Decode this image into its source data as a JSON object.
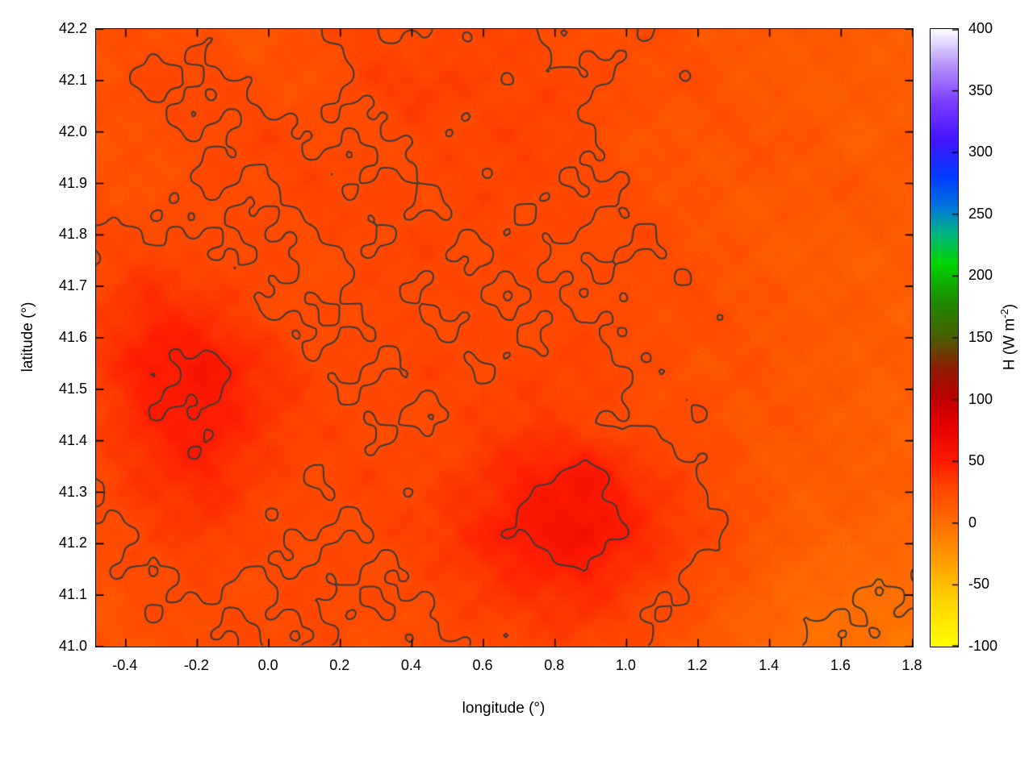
{
  "figure": {
    "xlabel": "longitude (°)",
    "ylabel": "latitude (°)",
    "cblabel_prefix": "H (W m",
    "cblabel_sup": "-2",
    "cblabel_suffix": ")"
  },
  "chart_data": {
    "type": "heatmap",
    "title": "",
    "xlabel": "longitude (°)",
    "ylabel": "latitude (°)",
    "colorbar_label": "H (W m^-2)",
    "x_range": [
      -0.483,
      1.8
    ],
    "y_range": [
      41.0,
      42.2
    ],
    "colorbar_range": [
      -100,
      400
    ],
    "x_tick_values": [
      -0.4,
      -0.2,
      0.0,
      0.2,
      0.4,
      0.6,
      0.8,
      1.0,
      1.2,
      1.4,
      1.6,
      1.8
    ],
    "x_tick_labels": [
      "-0.4",
      "-0.2",
      "0.0",
      "0.2",
      "0.4",
      "0.6",
      "0.8",
      "1.0",
      "1.2",
      "1.4",
      "1.6",
      "1.8"
    ],
    "y_tick_values": [
      41.0,
      41.1,
      41.2,
      41.3,
      41.4,
      41.5,
      41.6,
      41.7,
      41.8,
      41.9,
      42.0,
      42.1,
      42.2
    ],
    "y_tick_labels": [
      "41.0",
      "41.1",
      "41.2",
      "41.3",
      "41.4",
      "41.5",
      "41.6",
      "41.7",
      "41.8",
      "41.9",
      "42.0",
      "42.1",
      "42.2"
    ],
    "cb_tick_values": [
      -100,
      -50,
      0,
      50,
      100,
      150,
      200,
      250,
      300,
      350,
      400
    ],
    "cb_tick_labels": [
      "-100",
      "-50",
      "0",
      "50",
      "100",
      "150",
      "200",
      "250",
      "300",
      "350",
      "400"
    ],
    "grid_on": true,
    "legend": "colorbar-right",
    "contour_levels": [
      0,
      25,
      50
    ],
    "contour_color": "#3b3b3b",
    "palette": [
      {
        "v": -100,
        "c": "#ffff00"
      },
      {
        "v": -60,
        "c": "#ffd000"
      },
      {
        "v": -30,
        "c": "#ff9c00"
      },
      {
        "v": 0,
        "c": "#ff6d00"
      },
      {
        "v": 30,
        "c": "#ff4300"
      },
      {
        "v": 50,
        "c": "#ff1a00"
      },
      {
        "v": 80,
        "c": "#e30000"
      },
      {
        "v": 100,
        "c": "#c00000"
      },
      {
        "v": 125,
        "c": "#8f1c00"
      },
      {
        "v": 150,
        "c": "#4a5e00"
      },
      {
        "v": 180,
        "c": "#1e8c00"
      },
      {
        "v": 210,
        "c": "#00d400"
      },
      {
        "v": 235,
        "c": "#00b585"
      },
      {
        "v": 255,
        "c": "#0077d9"
      },
      {
        "v": 280,
        "c": "#003cff"
      },
      {
        "v": 310,
        "c": "#4214ff"
      },
      {
        "v": 340,
        "c": "#7a3bff"
      },
      {
        "v": 370,
        "c": "#b491fb"
      },
      {
        "v": 400,
        "c": "#ffffff"
      }
    ],
    "grid": {
      "x0": -0.483,
      "x1": 1.8,
      "y0": 41.0,
      "y1": 42.2,
      "rows_order": "top-to-bottom",
      "units": "W m^-2",
      "values": [
        [
          18,
          22,
          20,
          16,
          24,
          28,
          22,
          30,
          26,
          20,
          24,
          18,
          14,
          16,
          12,
          10
        ],
        [
          20,
          26,
          28,
          22,
          18,
          30,
          34,
          28,
          28,
          28,
          20,
          22,
          16,
          12,
          14,
          12
        ],
        [
          16,
          20,
          24,
          30,
          26,
          22,
          28,
          28,
          32,
          24,
          18,
          16,
          20,
          18,
          10,
          14
        ],
        [
          22,
          18,
          26,
          22,
          30,
          28,
          24,
          30,
          26,
          28,
          22,
          18,
          14,
          16,
          18,
          12
        ],
        [
          26,
          30,
          24,
          28,
          22,
          26,
          30,
          24,
          28,
          22,
          26,
          20,
          16,
          12,
          10,
          14
        ],
        [
          30,
          42,
          38,
          26,
          22,
          28,
          24,
          28,
          24,
          26,
          20,
          24,
          18,
          16,
          14,
          10
        ],
        [
          34,
          50,
          55,
          40,
          28,
          24,
          30,
          26,
          28,
          30,
          24,
          18,
          20,
          14,
          12,
          12
        ],
        [
          30,
          46,
          52,
          38,
          30,
          26,
          24,
          30,
          34,
          28,
          22,
          24,
          16,
          18,
          10,
          8
        ],
        [
          26,
          38,
          44,
          32,
          26,
          30,
          28,
          36,
          48,
          56,
          38,
          26,
          18,
          12,
          14,
          10
        ],
        [
          22,
          30,
          34,
          28,
          24,
          26,
          32,
          42,
          55,
          60,
          44,
          30,
          20,
          10,
          8,
          6
        ],
        [
          18,
          24,
          26,
          22,
          28,
          24,
          26,
          34,
          40,
          42,
          32,
          22,
          12,
          4,
          2,
          0
        ],
        [
          16,
          20,
          22,
          26,
          24,
          20,
          22,
          26,
          28,
          30,
          24,
          16,
          8,
          0,
          -4,
          -6
        ]
      ]
    }
  }
}
